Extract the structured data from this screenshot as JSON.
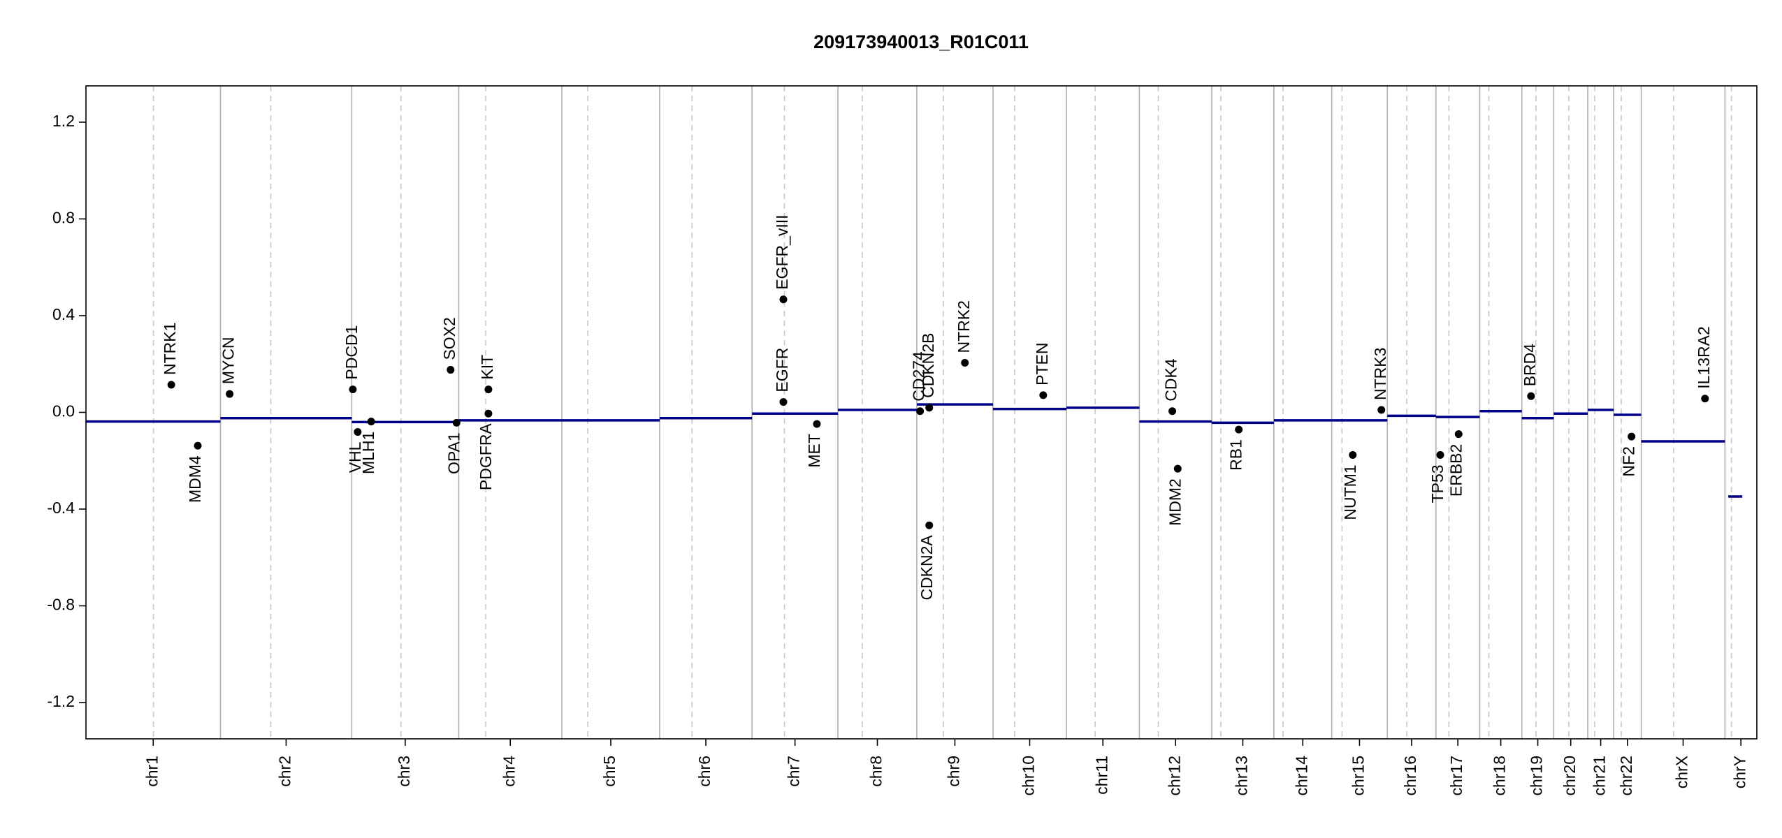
{
  "chart_data": {
    "type": "copy-number",
    "title": "209173940013_R01C011",
    "xlim": [
      0,
      3093
    ],
    "ylim": [
      -1.35,
      1.35
    ],
    "yticks": [
      1.2,
      0.8,
      0.4,
      {
        "value": 0,
        "label": "0.0"
      },
      -0.4,
      -0.8,
      -1.2
    ],
    "segment_color": "#00008b",
    "gene_color": "#000000",
    "chromosomes": [
      {
        "name": "chr1",
        "start": 0,
        "end": 249,
        "centromere": 125
      },
      {
        "name": "chr2",
        "start": 249,
        "end": 492,
        "centromere": 93
      },
      {
        "name": "chr3",
        "start": 492,
        "end": 690,
        "centromere": 91
      },
      {
        "name": "chr4",
        "start": 690,
        "end": 881,
        "centromere": 50
      },
      {
        "name": "chr5",
        "start": 881,
        "end": 1062,
        "centromere": 48
      },
      {
        "name": "chr6",
        "start": 1062,
        "end": 1233,
        "centromere": 60
      },
      {
        "name": "chr7",
        "start": 1233,
        "end": 1392,
        "centromere": 60
      },
      {
        "name": "chr8",
        "start": 1392,
        "end": 1538,
        "centromere": 45
      },
      {
        "name": "chr9",
        "start": 1538,
        "end": 1679,
        "centromere": 49
      },
      {
        "name": "chr10",
        "start": 1679,
        "end": 1815,
        "centromere": 40
      },
      {
        "name": "chr11",
        "start": 1815,
        "end": 1950,
        "centromere": 53
      },
      {
        "name": "chr12",
        "start": 1950,
        "end": 2084,
        "centromere": 35
      },
      {
        "name": "chr13",
        "start": 2084,
        "end": 2199,
        "centromere": 17
      },
      {
        "name": "chr14",
        "start": 2199,
        "end": 2306,
        "centromere": 17
      },
      {
        "name": "chr15",
        "start": 2306,
        "end": 2409,
        "centromere": 19
      },
      {
        "name": "chr16",
        "start": 2409,
        "end": 2499,
        "centromere": 36
      },
      {
        "name": "chr17",
        "start": 2499,
        "end": 2580,
        "centromere": 24
      },
      {
        "name": "chr18",
        "start": 2580,
        "end": 2658,
        "centromere": 17
      },
      {
        "name": "chr19",
        "start": 2658,
        "end": 2717,
        "centromere": 26
      },
      {
        "name": "chr20",
        "start": 2717,
        "end": 2780,
        "centromere": 28
      },
      {
        "name": "chr21",
        "start": 2780,
        "end": 2828,
        "centromere": 13
      },
      {
        "name": "chr22",
        "start": 2828,
        "end": 2879,
        "centromere": 14
      },
      {
        "name": "chrX",
        "start": 2879,
        "end": 3034,
        "centromere": 60
      },
      {
        "name": "chrY",
        "start": 3034,
        "end": 3093,
        "centromere": 12
      }
    ],
    "segments": [
      {
        "start": 0,
        "end": 249,
        "value": -0.038
      },
      {
        "start": 249,
        "end": 492,
        "value": -0.024
      },
      {
        "start": 492,
        "end": 690,
        "value": -0.04
      },
      {
        "start": 690,
        "end": 881,
        "value": -0.033
      },
      {
        "start": 881,
        "end": 1062,
        "value": -0.033
      },
      {
        "start": 1062,
        "end": 1233,
        "value": -0.024
      },
      {
        "start": 1233,
        "end": 1392,
        "value": -0.005
      },
      {
        "start": 1392,
        "end": 1538,
        "value": 0.01
      },
      {
        "start": 1538,
        "end": 1679,
        "value": 0.033
      },
      {
        "start": 1679,
        "end": 1815,
        "value": 0.014
      },
      {
        "start": 1815,
        "end": 1950,
        "value": 0.019
      },
      {
        "start": 1950,
        "end": 2084,
        "value": -0.038
      },
      {
        "start": 2084,
        "end": 2199,
        "value": -0.043
      },
      {
        "start": 2199,
        "end": 2306,
        "value": -0.033
      },
      {
        "start": 2306,
        "end": 2409,
        "value": -0.033
      },
      {
        "start": 2409,
        "end": 2499,
        "value": -0.014
      },
      {
        "start": 2499,
        "end": 2580,
        "value": -0.019
      },
      {
        "start": 2580,
        "end": 2658,
        "value": 0.005
      },
      {
        "start": 2658,
        "end": 2717,
        "value": -0.024
      },
      {
        "start": 2717,
        "end": 2780,
        "value": -0.005
      },
      {
        "start": 2780,
        "end": 2828,
        "value": 0.01
      },
      {
        "start": 2828,
        "end": 2879,
        "value": -0.01
      },
      {
        "start": 2879,
        "end": 3034,
        "value": -0.12
      },
      {
        "start": 3040,
        "end": 3066,
        "value": -0.348
      }
    ],
    "genes": [
      {
        "name": "NTRK1",
        "x": 158,
        "value": 0.114
      },
      {
        "name": "MDM4",
        "x": 207,
        "value": -0.138
      },
      {
        "name": "MYCN",
        "x": 266,
        "value": 0.076
      },
      {
        "name": "PDCD1",
        "x": 494,
        "value": 0.095
      },
      {
        "name": "VHL",
        "x": 503,
        "value": -0.081
      },
      {
        "name": "MLH1",
        "x": 528,
        "value": -0.038
      },
      {
        "name": "SOX2",
        "x": 675,
        "value": 0.176
      },
      {
        "name": "OPA1",
        "x": 686,
        "value": -0.043
      },
      {
        "name": "KIT",
        "x": 745,
        "value": 0.095
      },
      {
        "name": "PDGFRA",
        "x": 745,
        "value": -0.005
      },
      {
        "name": "EGFR",
        "x": 1291,
        "value": 0.043
      },
      {
        "name": "EGFR_vIII",
        "x": 1291,
        "value": 0.467
      },
      {
        "name": "MET",
        "x": 1353,
        "value": -0.048
      },
      {
        "name": "CD274",
        "x": 1544,
        "value": 0.005
      },
      {
        "name": "CDKN2B",
        "x": 1561,
        "value": 0.019
      },
      {
        "name": "CDKN2A",
        "x": 1561,
        "value": -0.467
      },
      {
        "name": "NTRK2",
        "x": 1627,
        "value": 0.205
      },
      {
        "name": "PTEN",
        "x": 1772,
        "value": 0.071
      },
      {
        "name": "CDK4",
        "x": 2011,
        "value": 0.005
      },
      {
        "name": "MDM2",
        "x": 2021,
        "value": -0.233
      },
      {
        "name": "RB1",
        "x": 2134,
        "value": -0.071
      },
      {
        "name": "NUTM1",
        "x": 2345,
        "value": -0.176
      },
      {
        "name": "NTRK3",
        "x": 2398,
        "value": 0.01
      },
      {
        "name": "TP53",
        "x": 2507,
        "value": -0.176
      },
      {
        "name": "ERBB2",
        "x": 2541,
        "value": -0.09
      },
      {
        "name": "BRD4",
        "x": 2675,
        "value": 0.067
      },
      {
        "name": "NF2",
        "x": 2861,
        "value": -0.1
      },
      {
        "name": "IL13RA2",
        "x": 2997,
        "value": 0.057
      }
    ]
  }
}
